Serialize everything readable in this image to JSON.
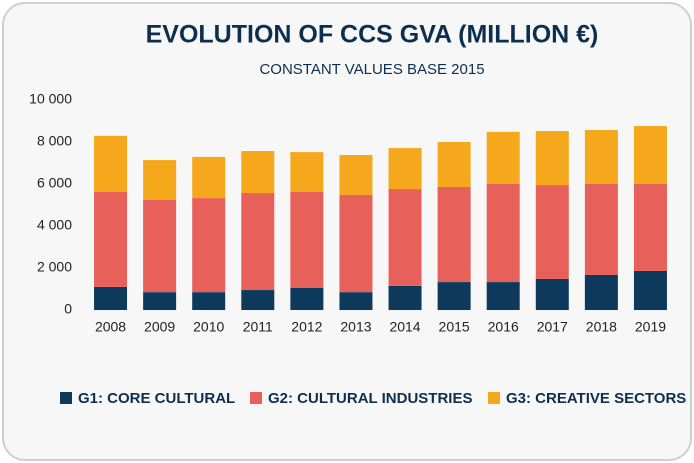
{
  "chart_data": {
    "type": "stacked_bar",
    "title": "EVOLUTION OF CCS GVA (MILLION €)",
    "subtitle": "CONSTANT VALUES BASE 2015",
    "categories": [
      "2008",
      "2009",
      "2010",
      "2011",
      "2012",
      "2013",
      "2014",
      "2015",
      "2016",
      "2017",
      "2018",
      "2019"
    ],
    "series": [
      {
        "name": "G1: CORE CULTURAL",
        "color": "#0d3a5c",
        "values": [
          1100,
          850,
          850,
          950,
          1050,
          850,
          1150,
          1330,
          1330,
          1480,
          1670,
          1860
        ]
      },
      {
        "name": "G2: CULTURAL INDUSTRIES",
        "color": "#e8605a",
        "values": [
          4520,
          4390,
          4480,
          4620,
          4570,
          4630,
          4610,
          4530,
          4670,
          4470,
          4330,
          4140
        ]
      },
      {
        "name": "G3: CREATIVE SECTORS",
        "color": "#f5a81c",
        "values": [
          2670,
          1900,
          1960,
          2000,
          1900,
          1900,
          1950,
          2140,
          2480,
          2570,
          2570,
          2760
        ]
      }
    ],
    "ylim": [
      0,
      10000
    ],
    "yticks": [
      0,
      {
        "value": 2000,
        "label": "2 000"
      },
      {
        "value": 4000,
        "label": "4 000"
      },
      {
        "value": 6000,
        "label": "6 000"
      },
      {
        "value": 8000,
        "label": "8 000"
      },
      {
        "value": 10000,
        "label": "10 000"
      }
    ],
    "legend": "bottom"
  }
}
